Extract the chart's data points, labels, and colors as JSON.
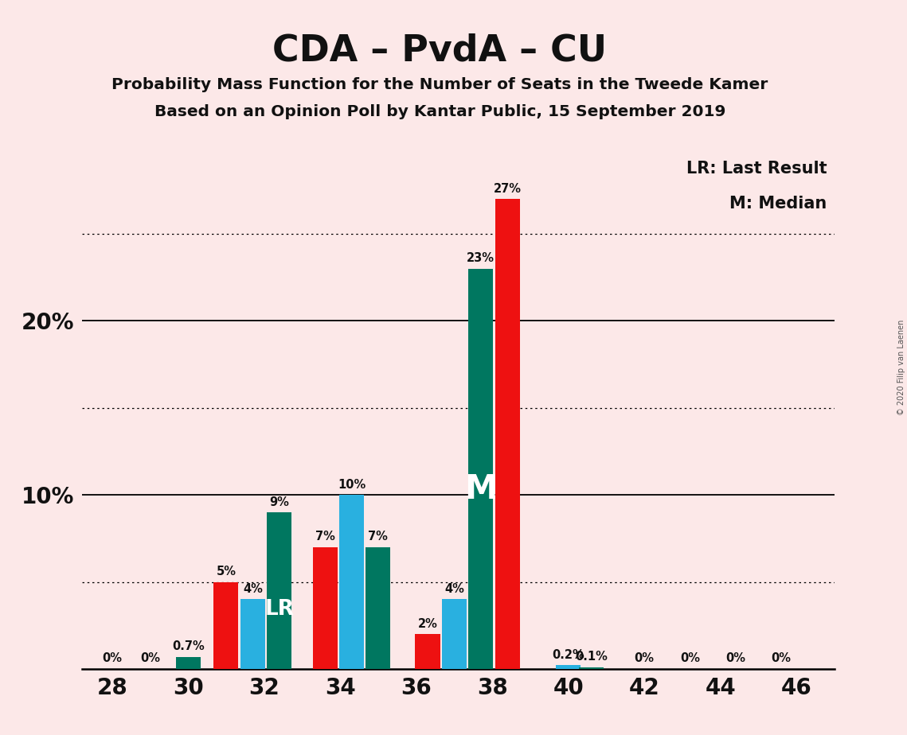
{
  "title": "CDA – PvdA – CU",
  "subtitle1": "Probability Mass Function for the Number of Seats in the Tweede Kamer",
  "subtitle2": "Based on an Opinion Poll by Kantar Public, 15 September 2019",
  "copyright": "© 2020 Filip van Laenen",
  "legend_lr": "LR: Last Result",
  "legend_m": "M: Median",
  "background_color": "#fce8e8",
  "bar_color_red": "#ee1111",
  "bar_color_blue": "#29b0e0",
  "bar_color_teal": "#007760",
  "bar_data": [
    {
      "x": 30.0,
      "color": "teal",
      "value": 0.7,
      "label": "0.7%",
      "special": null
    },
    {
      "x": 31.0,
      "color": "red",
      "value": 5.0,
      "label": "5%",
      "special": null
    },
    {
      "x": 31.7,
      "color": "blue",
      "value": 4.0,
      "label": "4%",
      "special": null
    },
    {
      "x": 32.4,
      "color": "teal",
      "value": 9.0,
      "label": "9%",
      "special": "LR"
    },
    {
      "x": 33.6,
      "color": "red",
      "value": 7.0,
      "label": "7%",
      "special": null
    },
    {
      "x": 34.3,
      "color": "blue",
      "value": 10.0,
      "label": "10%",
      "special": null
    },
    {
      "x": 35.0,
      "color": "teal",
      "value": 7.0,
      "label": "7%",
      "special": null
    },
    {
      "x": 36.3,
      "color": "red",
      "value": 2.0,
      "label": "2%",
      "special": null
    },
    {
      "x": 37.0,
      "color": "blue",
      "value": 4.0,
      "label": "4%",
      "special": null
    },
    {
      "x": 37.7,
      "color": "teal",
      "value": 23.0,
      "label": "23%",
      "special": "M"
    },
    {
      "x": 38.4,
      "color": "red",
      "value": 27.0,
      "label": "27%",
      "special": null
    },
    {
      "x": 40.0,
      "color": "blue",
      "value": 0.2,
      "label": "0.2%",
      "special": null
    },
    {
      "x": 40.6,
      "color": "teal",
      "value": 0.1,
      "label": "0.1%",
      "special": null
    }
  ],
  "zero_labels": [
    {
      "x": 28.0,
      "label": "0%"
    },
    {
      "x": 29.0,
      "label": "0%"
    },
    {
      "x": 42.0,
      "label": "0%"
    },
    {
      "x": 43.2,
      "label": "0%"
    },
    {
      "x": 44.4,
      "label": "0%"
    },
    {
      "x": 45.6,
      "label": "0%"
    }
  ],
  "solid_gridlines": [
    10,
    20
  ],
  "dotted_gridlines": [
    5,
    15,
    25
  ],
  "xlim": [
    27.2,
    47.0
  ],
  "ylim": [
    0,
    30
  ],
  "x_tick_positions": [
    28,
    30,
    32,
    34,
    36,
    38,
    40,
    42,
    44,
    46
  ],
  "bar_width": 0.65
}
